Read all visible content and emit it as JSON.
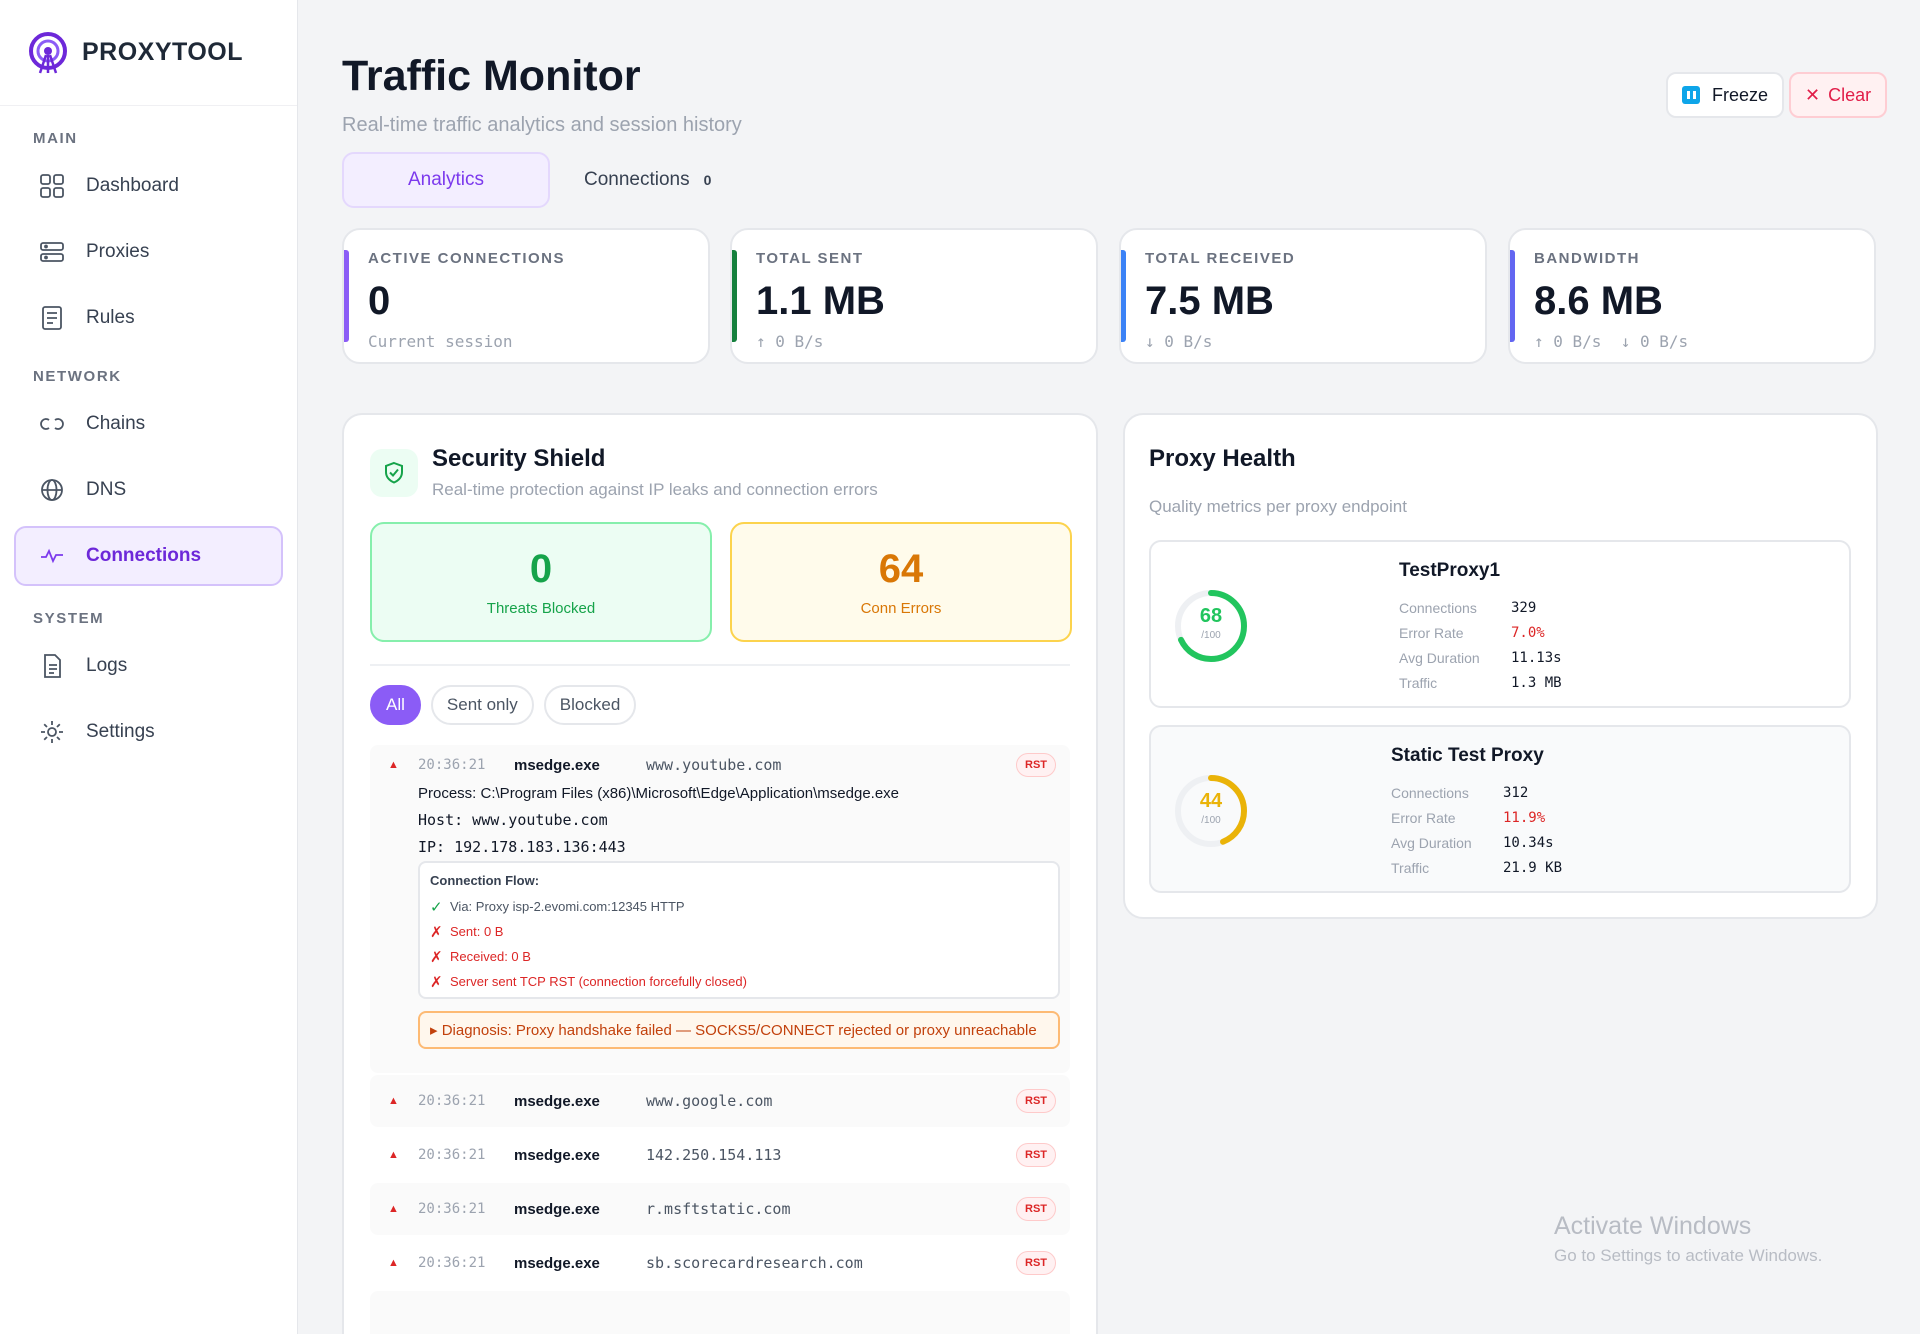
{
  "brand": {
    "name": "PROXYTOOL"
  },
  "sidebar": {
    "sections": [
      {
        "title": "MAIN",
        "items": [
          {
            "label": "Dashboard"
          },
          {
            "label": "Proxies"
          },
          {
            "label": "Rules"
          }
        ]
      },
      {
        "title": "NETWORK",
        "items": [
          {
            "label": "Chains"
          },
          {
            "label": "DNS"
          },
          {
            "label": "Connections"
          }
        ]
      },
      {
        "title": "SYSTEM",
        "items": [
          {
            "label": "Logs"
          },
          {
            "label": "Settings"
          }
        ]
      }
    ]
  },
  "header": {
    "title": "Traffic Monitor",
    "subtitle": "Real-time traffic analytics and session history",
    "freeze_label": "Freeze",
    "clear_label": "Clear"
  },
  "tabs": [
    {
      "label": "Analytics"
    },
    {
      "label": "Connections",
      "count": "0"
    }
  ],
  "stats": [
    {
      "label": "Active Connections",
      "value": "0",
      "sub": "Current session",
      "color": "#8b5cf6"
    },
    {
      "label": "Total Sent",
      "value": "1.1 MB",
      "sub": "↑ 0 B/s",
      "color": "#15803d"
    },
    {
      "label": "Total Received",
      "value": "7.5 MB",
      "sub": "↓ 0 B/s",
      "color": "#3b82f6"
    },
    {
      "label": "Bandwidth",
      "value": "8.6 MB",
      "sub": "↑ 0 B/s  ↓ 0 B/s",
      "color": "#6366f1"
    }
  ],
  "shield": {
    "title": "Security Shield",
    "subtitle": "Real-time protection against IP leaks and connection errors",
    "threats_value": "0",
    "threats_label": "Threats Blocked",
    "errors_value": "64",
    "errors_label": "Conn Errors",
    "filters": [
      "All",
      "Sent only",
      "Blocked"
    ],
    "expanded": {
      "time": "20:36:21",
      "process": "msedge.exe",
      "host": "www.youtube.com",
      "badge": "RST",
      "process_line": "Process: C:\\Program Files (x86)\\Microsoft\\Edge\\Application\\msedge.exe",
      "host_line": "Host: www.youtube.com",
      "ip_line": "IP: 192.178.183.136:443",
      "flow_title": "Connection Flow:",
      "flow": [
        {
          "mark": "✓",
          "text": "Via: Proxy isp-2.evomi.com:12345 HTTP"
        },
        {
          "mark": "✗",
          "text": "Sent: 0 B"
        },
        {
          "mark": "✗",
          "text": "Received: 0 B"
        },
        {
          "mark": "✗",
          "text": "Server sent TCP RST (connection forcefully closed)"
        }
      ],
      "diagnosis": "▸ Diagnosis: Proxy handshake failed — SOCKS5/CONNECT rejected or proxy unreachable"
    },
    "rows": [
      {
        "time": "20:36:21",
        "process": "msedge.exe",
        "host": "www.google.com",
        "badge": "RST"
      },
      {
        "time": "20:36:21",
        "process": "msedge.exe",
        "host": "142.250.154.113",
        "badge": "RST"
      },
      {
        "time": "20:36:21",
        "process": "msedge.exe",
        "host": "r.msftstatic.com",
        "badge": "RST"
      },
      {
        "time": "20:36:21",
        "process": "msedge.exe",
        "host": "sb.scorecardresearch.com",
        "badge": "RST"
      }
    ]
  },
  "health": {
    "title": "Proxy Health",
    "subtitle": "Quality metrics per proxy endpoint",
    "proxies": [
      {
        "name": "TestProxy1",
        "score": "68",
        "score_max": "/100",
        "score_fraction": 0.68,
        "color": "#22c55e",
        "connections_label": "Connections",
        "connections": "329",
        "error_label": "Error Rate",
        "error_rate": "7.0%",
        "duration_label": "Avg Duration",
        "duration": "11.13s",
        "traffic_label": "Traffic",
        "traffic": "1.3 MB"
      },
      {
        "name": "Static Test Proxy",
        "score": "44",
        "score_max": "/100",
        "score_fraction": 0.44,
        "color": "#eab308",
        "connections_label": "Connections",
        "connections": "312",
        "error_label": "Error Rate",
        "error_rate": "11.9%",
        "duration_label": "Avg Duration",
        "duration": "10.34s",
        "traffic_label": "Traffic",
        "traffic": "21.9 KB"
      }
    ]
  },
  "watermark": {
    "line1": "Activate Windows",
    "line2": "Go to Settings to activate Windows."
  }
}
